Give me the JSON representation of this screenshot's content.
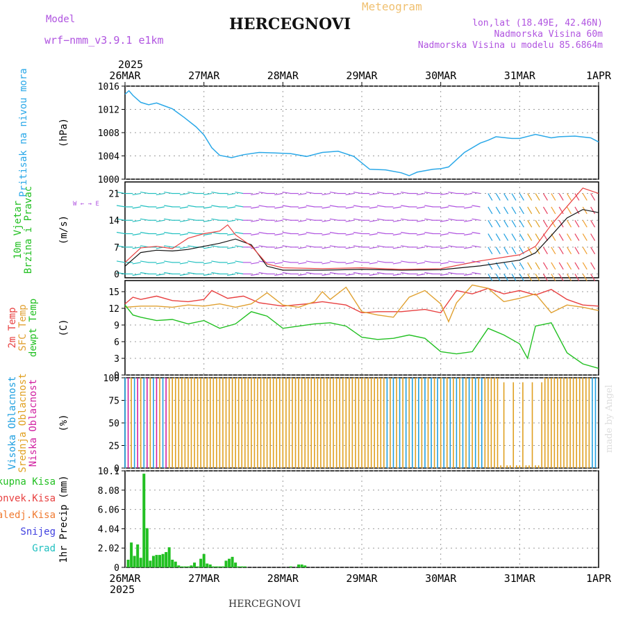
{
  "header": {
    "model_label": "Model",
    "model_value": "wrf−nmm_v3.9.1  e1km",
    "title": "HERCEGNOVI",
    "subtitle": "Meteogram",
    "coords": "lon,lat (18.49E, 42.46N)",
    "elevation": "Nadmorska Visina 60m",
    "model_elevation": "Nadmorska Visina u modelu 85.6864m"
  },
  "footer": {
    "station": "HERCEGNOVI",
    "credit": "made by Angel"
  },
  "colors": {
    "pressure": "#2aa8e8",
    "temp2m": "#e84040",
    "sfc": "#e0a030",
    "dew": "#22c022",
    "high_cloud": "#20a0e0",
    "mid_cloud": "#e0a020",
    "low_cloud": "#d020a0",
    "precip_total": "#22c022",
    "purple": "#b054e0",
    "wind_speed": "#111111",
    "gust": "#e84040"
  },
  "chart_data": {
    "type": "line",
    "time_axis": {
      "year": "2025",
      "ticks": [
        "26MAR",
        "27MAR",
        "28MAR",
        "29MAR",
        "30MAR",
        "31MAR",
        "1APR"
      ],
      "bottom_ticks": [
        "26MAR",
        "27MAR",
        "28MAR",
        "29MAR",
        "30MAR",
        "31MAR",
        "1APR"
      ],
      "bottom_year": "2025"
    },
    "panels": [
      {
        "id": "pressure",
        "labels": [
          "Pritisak na nivou mora"
        ],
        "unit": "(hPa)",
        "ylim": [
          1000,
          1016
        ],
        "yticks": [
          "1000",
          "1004",
          "1008",
          "1012",
          "1016"
        ],
        "series": [
          {
            "x": [
              0,
              0.05,
              0.1,
              0.2,
              0.3,
              0.4,
              0.5,
              0.6,
              0.75,
              0.9,
              1.0,
              1.1,
              1.2,
              1.35,
              1.5,
              1.7,
              1.9,
              2.1,
              2.3,
              2.5,
              2.7,
              2.9,
              3.0,
              3.1,
              3.3,
              3.5,
              3.6,
              3.7,
              3.9,
              4.0,
              4.1,
              4.3,
              4.5,
              4.6,
              4.7,
              4.9,
              5.0,
              5.2,
              5.4,
              5.5,
              5.7,
              5.9,
              6.0
            ],
            "y": [
              1014.6,
              1015.2,
              1014.4,
              1013.2,
              1012.8,
              1013.1,
              1012.6,
              1012.1,
              1010.6,
              1009.0,
              1007.6,
              1005.4,
              1004.1,
              1003.7,
              1004.2,
              1004.6,
              1004.5,
              1004.4,
              1003.9,
              1004.6,
              1004.8,
              1003.9,
              1002.8,
              1001.7,
              1001.6,
              1001.1,
              1000.6,
              1001.2,
              1001.7,
              1001.8,
              1002.1,
              1004.6,
              1006.2,
              1006.7,
              1007.3,
              1007.0,
              1007.0,
              1007.7,
              1007.1,
              1007.3,
              1007.4,
              1007.1,
              1006.4
            ]
          }
        ]
      },
      {
        "id": "wind",
        "labels": [
          "10m Vjetar",
          "Brzina i Pravac"
        ],
        "unit": "(m/s)",
        "compass": "W ← → E",
        "ylim": [
          -1,
          24
        ],
        "yticks": [
          "0",
          "7",
          "14",
          "21"
        ],
        "series": [
          {
            "x": [
              0,
              0.2,
              0.4,
              0.6,
              0.8,
              1.0,
              1.2,
              1.4,
              1.6,
              1.8,
              2.0,
              2.5,
              3.0,
              3.5,
              4.0,
              4.5,
              5.0,
              5.2,
              5.4,
              5.6,
              5.8,
              6.0
            ],
            "y": [
              2,
              5.6,
              6.2,
              6.0,
              6.4,
              7.2,
              8.0,
              9.1,
              7.6,
              2.0,
              1.0,
              1.0,
              1.2,
              1.0,
              1.1,
              2.1,
              3.6,
              5.5,
              10.0,
              14.6,
              16.8,
              16.0
            ]
          },
          {
            "x": [
              0,
              0.2,
              0.4,
              0.6,
              0.8,
              1.0,
              1.2,
              1.3,
              1.4,
              1.6,
              1.8,
              2.0,
              2.5,
              3.0,
              3.5,
              4.0,
              4.5,
              5.0,
              5.2,
              5.4,
              5.6,
              5.8,
              6.0
            ],
            "y": [
              3,
              6.8,
              7.2,
              6.6,
              9.3,
              10.5,
              11.2,
              12.8,
              10.2,
              7.3,
              2.6,
              1.6,
              1.4,
              1.6,
              1.2,
              1.4,
              3.4,
              5.0,
              7.2,
              12.8,
              17.6,
              22.4,
              21.0
            ]
          }
        ]
      },
      {
        "id": "temperature",
        "labels": [
          "2m Temp",
          "SFC Temp",
          "dewpt Temp"
        ],
        "unit": "(C)",
        "ylim": [
          0,
          17
        ],
        "yticks": [
          "0",
          "3",
          "6",
          "9",
          "12",
          "15"
        ],
        "series": [
          {
            "x": [
              0,
              0.1,
              0.2,
              0.4,
              0.6,
              0.8,
              1.0,
              1.1,
              1.3,
              1.5,
              1.7,
              2.0,
              2.3,
              2.5,
              2.8,
              3.0,
              3.2,
              3.5,
              3.8,
              4.0,
              4.2,
              4.4,
              4.6,
              4.8,
              5.0,
              5.2,
              5.4,
              5.6,
              5.8,
              6.0
            ],
            "y": [
              12.8,
              14.0,
              13.6,
              14.2,
              13.4,
              13.2,
              13.6,
              15.2,
              13.8,
              14.2,
              13.0,
              12.4,
              12.8,
              13.2,
              12.6,
              11.2,
              11.4,
              11.4,
              11.8,
              11.2,
              15.2,
              14.6,
              15.6,
              14.6,
              15.2,
              14.4,
              15.4,
              13.6,
              12.6,
              12.4
            ]
          },
          {
            "x": [
              0,
              0.2,
              0.4,
              0.6,
              0.8,
              1.0,
              1.2,
              1.4,
              1.6,
              1.8,
              2.0,
              2.2,
              2.4,
              2.5,
              2.6,
              2.8,
              3.0,
              3.2,
              3.4,
              3.6,
              3.8,
              4.0,
              4.1,
              4.2,
              4.4,
              4.6,
              4.8,
              5.0,
              5.2,
              5.4,
              5.6,
              5.8,
              6.0
            ],
            "y": [
              12.2,
              12.4,
              12.4,
              12.2,
              12.6,
              12.4,
              12.8,
              12.2,
              12.8,
              14.8,
              12.6,
              12.2,
              13.2,
              15.0,
              13.6,
              15.8,
              11.4,
              10.8,
              10.4,
              14.0,
              15.2,
              12.8,
              9.6,
              13.0,
              16.2,
              15.6,
              13.2,
              13.8,
              14.6,
              11.2,
              12.6,
              12.2,
              11.6
            ]
          },
          {
            "x": [
              0,
              0.1,
              0.2,
              0.4,
              0.6,
              0.8,
              1.0,
              1.2,
              1.4,
              1.6,
              1.8,
              2.0,
              2.2,
              2.4,
              2.6,
              2.8,
              3.0,
              3.2,
              3.4,
              3.6,
              3.8,
              4.0,
              4.2,
              4.4,
              4.6,
              4.8,
              5.0,
              5.1,
              5.2,
              5.4,
              5.6,
              5.8,
              6.0
            ],
            "y": [
              12.6,
              10.8,
              10.4,
              9.8,
              10.0,
              9.2,
              9.8,
              8.4,
              9.2,
              11.4,
              10.6,
              8.4,
              8.8,
              9.2,
              9.4,
              8.8,
              6.8,
              6.4,
              6.6,
              7.2,
              6.6,
              4.2,
              3.8,
              4.2,
              8.4,
              7.2,
              5.6,
              3.0,
              8.8,
              9.4,
              4.0,
              2.0,
              1.2
            ]
          }
        ]
      },
      {
        "id": "clouds",
        "labels": [
          "Visoka Oblacnost",
          "Srednja Oblacnost",
          "Niska Oblacnost"
        ],
        "unit": "(%)",
        "ylim": [
          0,
          100
        ],
        "yticks": [
          "0",
          "25",
          "50",
          "75",
          "100"
        ]
      },
      {
        "id": "precip",
        "labels": [
          "Ukupna Kisa",
          "Konvek.Kisa",
          "Zaledj.Kisa",
          "Snijeg",
          "Grad"
        ],
        "unit": "1hr Precip (mm)",
        "ylim": [
          0,
          10.1
        ],
        "yticks": [
          "0",
          "2.02",
          "4.04",
          "6.06",
          "8.08",
          "10.1"
        ],
        "x": [
          0.04,
          0.08,
          0.12,
          0.16,
          0.2,
          0.24,
          0.28,
          0.32,
          0.36,
          0.4,
          0.44,
          0.48,
          0.52,
          0.56,
          0.6,
          0.64,
          0.68,
          0.72,
          0.76,
          0.8,
          0.84,
          0.88,
          0.92,
          0.96,
          1.0,
          1.04,
          1.08,
          1.12,
          1.16,
          1.2,
          1.24,
          1.28,
          1.32,
          1.36,
          1.4,
          1.44,
          1.48,
          1.52,
          2.1,
          2.2,
          2.24,
          2.28
        ],
        "y": [
          0.8,
          2.6,
          1.2,
          2.4,
          1.0,
          9.8,
          4.1,
          0.7,
          1.2,
          1.3,
          1.3,
          1.4,
          1.6,
          2.1,
          0.8,
          0.6,
          0.2,
          0.1,
          0.1,
          0.1,
          0.2,
          0.5,
          0.1,
          0.9,
          1.4,
          0.4,
          0.3,
          0.1,
          0.1,
          0.1,
          0.1,
          0.7,
          0.9,
          1.1,
          0.5,
          0.1,
          0.1,
          0.1,
          0.1,
          0.3,
          0.3,
          0.2
        ]
      }
    ]
  }
}
